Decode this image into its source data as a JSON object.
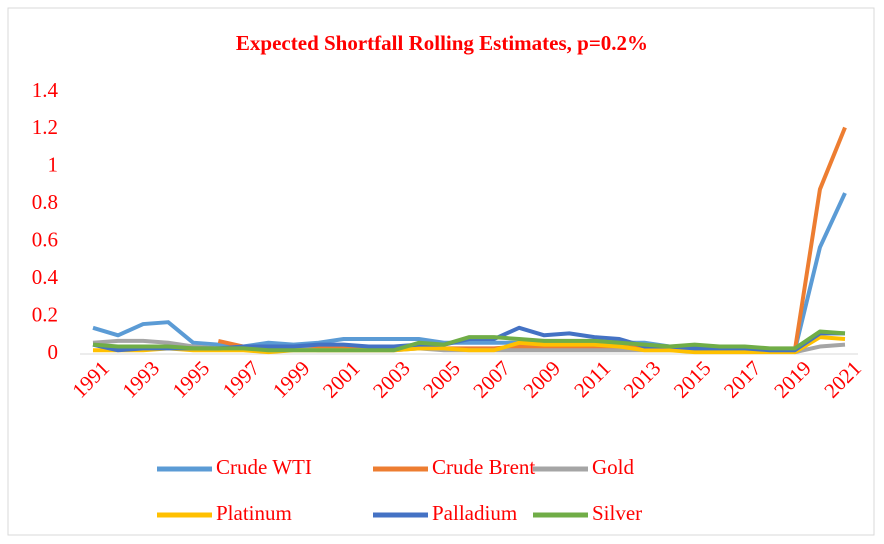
{
  "chart_data": {
    "type": "line",
    "title": "Expected Shortfall Rolling Estimates, p=0.2%",
    "x": [
      1991,
      1992,
      1993,
      1994,
      1995,
      1996,
      1997,
      1998,
      1999,
      2000,
      2001,
      2002,
      2003,
      2004,
      2005,
      2006,
      2007,
      2008,
      2009,
      2010,
      2011,
      2012,
      2013,
      2014,
      2015,
      2016,
      2017,
      2018,
      2019,
      2020,
      2021
    ],
    "xlim": [
      1991,
      2021
    ],
    "xticks": [
      1991,
      1993,
      1995,
      1997,
      1999,
      2001,
      2003,
      2005,
      2007,
      2009,
      2011,
      2013,
      2015,
      2017,
      2019,
      2021
    ],
    "ylim": [
      0,
      1.4
    ],
    "yticks": [
      0,
      0.2,
      0.4,
      0.6,
      0.8,
      1,
      1.2,
      1.4
    ],
    "grid": false,
    "legend": "bottom",
    "series": [
      {
        "name": "Crude WTI",
        "color": "#5b9bd5",
        "values": [
          0.14,
          0.1,
          0.16,
          0.17,
          0.06,
          0.05,
          0.04,
          0.06,
          0.05,
          0.06,
          0.08,
          0.08,
          0.08,
          0.08,
          0.06,
          0.06,
          0.06,
          0.06,
          0.06,
          0.06,
          0.06,
          0.06,
          0.06,
          0.04,
          0.04,
          0.03,
          0.03,
          0.02,
          0.02,
          0.57,
          0.86
        ]
      },
      {
        "name": "Crude Brent",
        "color": "#ed7d31",
        "values": [
          null,
          null,
          null,
          null,
          null,
          0.07,
          0.04,
          0.03,
          0.03,
          0.03,
          0.03,
          0.03,
          0.03,
          0.03,
          0.03,
          0.03,
          0.03,
          0.04,
          0.04,
          0.04,
          0.04,
          0.04,
          0.03,
          0.03,
          0.03,
          0.03,
          0.03,
          0.02,
          0.02,
          0.88,
          1.21
        ]
      },
      {
        "name": "Gold",
        "color": "#a5a5a5",
        "values": [
          0.06,
          0.07,
          0.07,
          0.06,
          0.04,
          0.03,
          0.03,
          0.03,
          0.03,
          0.02,
          0.02,
          0.02,
          0.02,
          0.03,
          0.02,
          0.02,
          0.02,
          0.02,
          0.02,
          0.02,
          0.02,
          0.02,
          0.02,
          0.02,
          0.02,
          0.02,
          0.02,
          0.02,
          0.01,
          0.04,
          0.05
        ]
      },
      {
        "name": "Platinum",
        "color": "#ffc000",
        "values": [
          0.02,
          0.02,
          0.02,
          0.03,
          0.02,
          0.02,
          0.02,
          0.01,
          0.02,
          0.02,
          0.02,
          0.02,
          0.02,
          0.03,
          0.03,
          0.02,
          0.02,
          0.06,
          0.05,
          0.05,
          0.05,
          0.04,
          0.02,
          0.02,
          0.01,
          0.01,
          0.01,
          0.01,
          0.01,
          0.09,
          0.08
        ]
      },
      {
        "name": "Palladium",
        "color": "#4472c4",
        "values": [
          0.05,
          0.02,
          0.03,
          0.03,
          0.03,
          0.03,
          0.04,
          0.04,
          0.04,
          0.05,
          0.05,
          0.04,
          0.04,
          0.05,
          0.05,
          0.08,
          0.08,
          0.14,
          0.1,
          0.11,
          0.09,
          0.08,
          0.04,
          0.04,
          0.03,
          0.03,
          0.03,
          0.02,
          0.02,
          0.11,
          0.11
        ]
      },
      {
        "name": "Silver",
        "color": "#70ad47",
        "values": [
          0.05,
          0.04,
          0.04,
          0.04,
          0.03,
          0.03,
          0.03,
          0.02,
          0.02,
          0.02,
          0.02,
          0.02,
          0.02,
          0.06,
          0.05,
          0.09,
          0.09,
          0.08,
          0.07,
          0.07,
          0.07,
          0.06,
          0.05,
          0.04,
          0.05,
          0.04,
          0.04,
          0.03,
          0.03,
          0.12,
          0.11
        ]
      }
    ]
  }
}
